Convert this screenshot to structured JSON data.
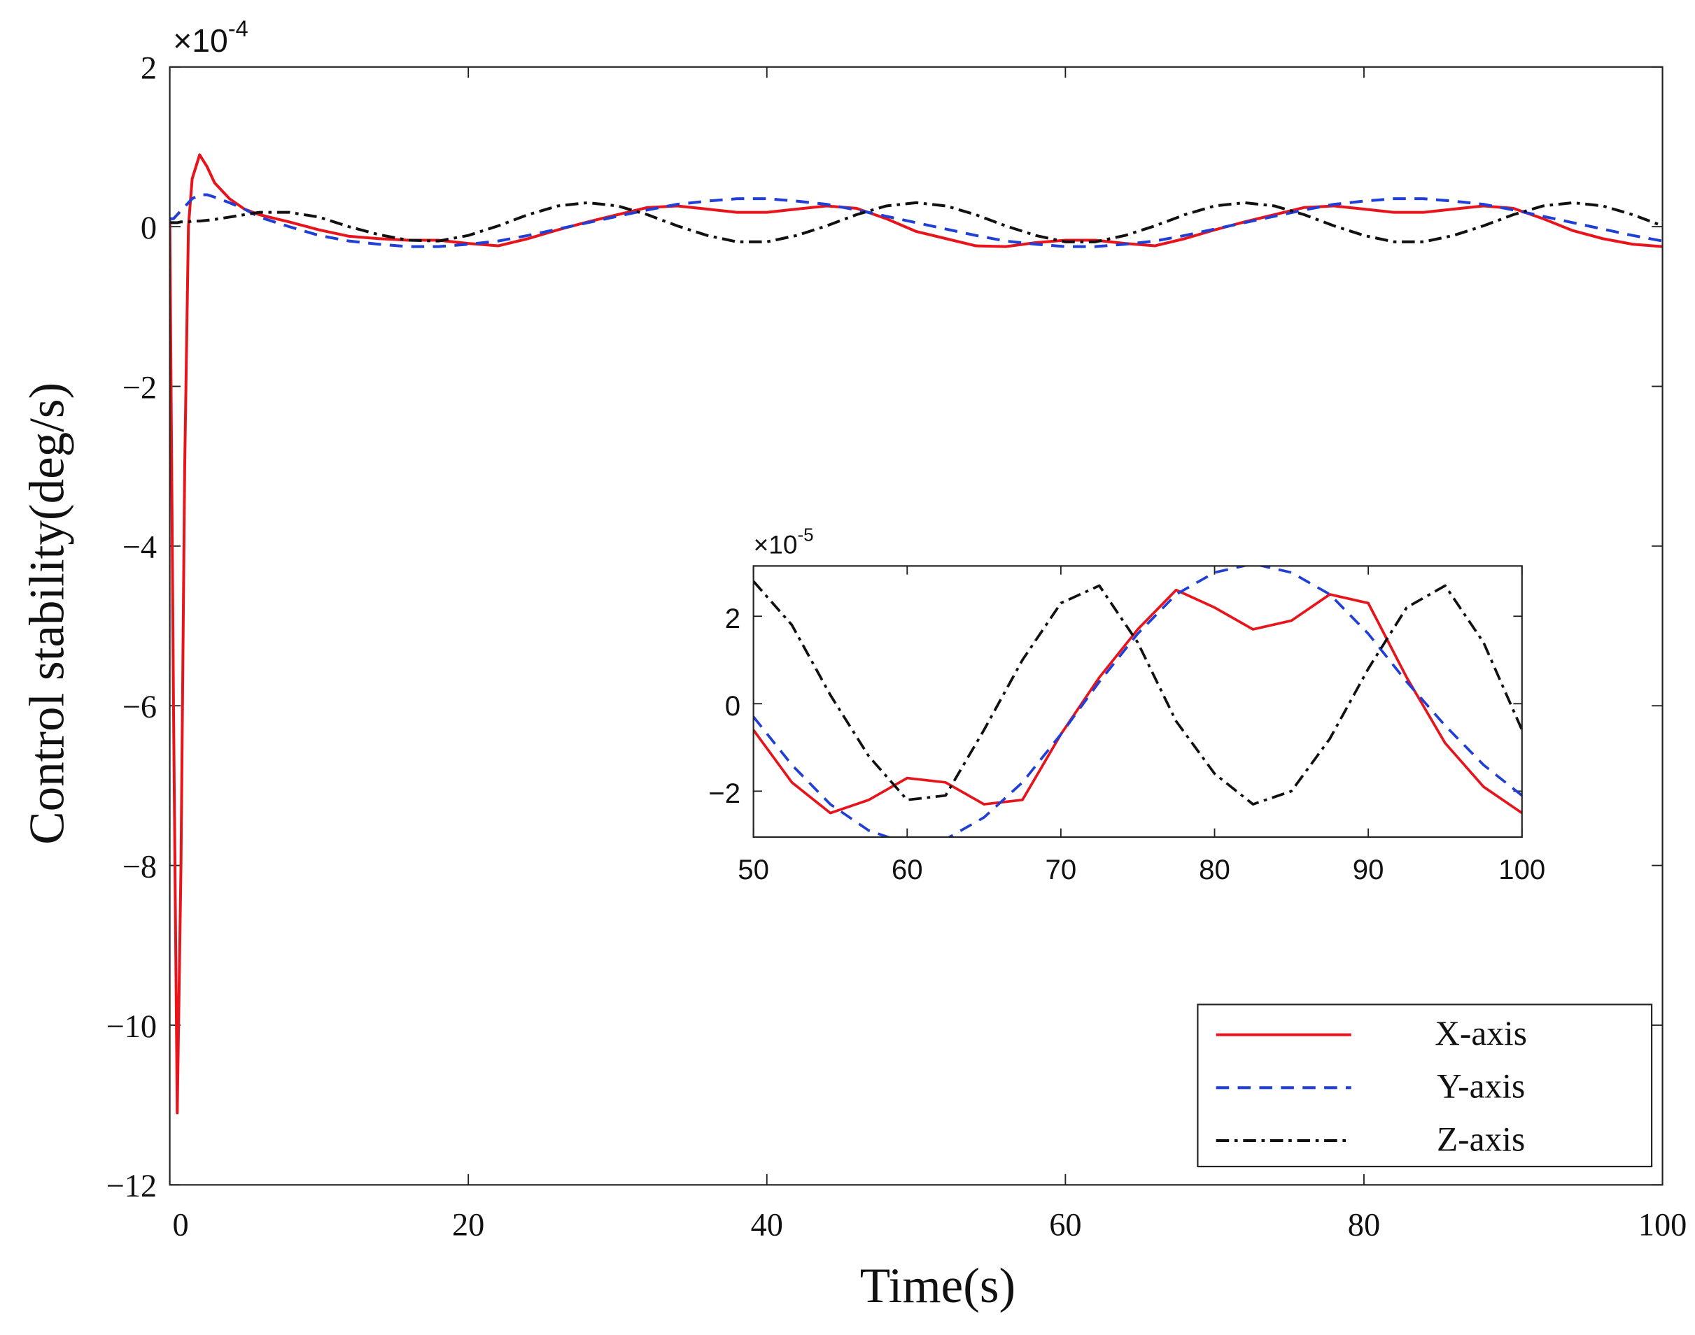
{
  "chart_data": [
    {
      "type": "line",
      "xlabel": "Time(s)",
      "ylabel": "Control stability(deg/s)",
      "multiplier": {
        "base": "×10",
        "exponent": "-4"
      },
      "x": [
        0,
        0.25,
        0.5,
        0.75,
        1,
        1.25,
        1.5,
        2,
        2.5,
        3,
        4,
        5,
        6,
        8,
        10,
        12,
        14,
        16,
        18,
        20,
        22,
        24,
        26,
        28,
        30,
        32,
        34,
        36,
        38,
        40,
        42,
        44,
        46,
        48,
        50,
        52,
        54,
        56,
        58,
        60,
        62,
        64,
        66,
        68,
        70,
        72,
        74,
        76,
        78,
        80,
        82,
        84,
        86,
        88,
        90,
        92,
        94,
        96,
        98,
        100
      ],
      "xlim": [
        0,
        100
      ],
      "xticks": [
        0,
        20,
        40,
        60,
        80,
        100
      ],
      "ylim": [
        -12,
        2
      ],
      "yticks": [
        -12,
        -10,
        -8,
        -6,
        -4,
        -2,
        0,
        2
      ],
      "grid": false,
      "legend": "lower right",
      "series": [
        {
          "name": "X-axis",
          "color": "#e8141c",
          "dash": "solid",
          "values": [
            0.1,
            -6,
            -11.1,
            -8,
            -3,
            0,
            0.6,
            0.9,
            0.75,
            0.55,
            0.35,
            0.22,
            0.15,
            0.06,
            -0.04,
            -0.12,
            -0.15,
            -0.17,
            -0.17,
            -0.21,
            -0.24,
            -0.15,
            -0.04,
            0.06,
            0.15,
            0.24,
            0.26,
            0.22,
            0.18,
            0.18,
            0.22,
            0.26,
            0.23,
            0.1,
            -0.06,
            -0.15,
            -0.24,
            -0.25,
            -0.2,
            -0.17,
            -0.17,
            -0.21,
            -0.24,
            -0.15,
            -0.04,
            0.06,
            0.15,
            0.24,
            0.26,
            0.22,
            0.18,
            0.18,
            0.22,
            0.26,
            0.23,
            0.1,
            -0.05,
            -0.15,
            -0.22,
            -0.25
          ]
        },
        {
          "name": "Y-axis",
          "color": "#1f3fd6",
          "dash": "dashed",
          "values": [
            0.1,
            0.1,
            0.15,
            0.2,
            0.25,
            0.3,
            0.35,
            0.4,
            0.4,
            0.37,
            0.3,
            0.22,
            0.12,
            0.0,
            -0.11,
            -0.18,
            -0.22,
            -0.25,
            -0.25,
            -0.22,
            -0.18,
            -0.11,
            -0.03,
            0.05,
            0.13,
            0.21,
            0.28,
            0.32,
            0.35,
            0.35,
            0.32,
            0.28,
            0.21,
            0.13,
            0.05,
            -0.03,
            -0.11,
            -0.18,
            -0.22,
            -0.25,
            -0.25,
            -0.22,
            -0.18,
            -0.11,
            -0.03,
            0.05,
            0.13,
            0.21,
            0.28,
            0.32,
            0.35,
            0.35,
            0.32,
            0.28,
            0.21,
            0.13,
            0.05,
            -0.03,
            -0.11,
            -0.18
          ]
        },
        {
          "name": "Z-axis",
          "color": "#111111",
          "dash": "dashdot",
          "values": [
            0.05,
            0.05,
            0.05,
            0.06,
            0.06,
            0.06,
            0.07,
            0.07,
            0.08,
            0.09,
            0.12,
            0.15,
            0.18,
            0.18,
            0.12,
            0.0,
            -0.1,
            -0.17,
            -0.18,
            -0.11,
            0.01,
            0.15,
            0.26,
            0.3,
            0.26,
            0.15,
            0.01,
            -0.11,
            -0.19,
            -0.19,
            -0.11,
            0.01,
            0.15,
            0.26,
            0.3,
            0.26,
            0.15,
            0.01,
            -0.11,
            -0.19,
            -0.19,
            -0.11,
            0.01,
            0.15,
            0.26,
            0.3,
            0.26,
            0.15,
            0.01,
            -0.11,
            -0.19,
            -0.19,
            -0.11,
            0.01,
            0.15,
            0.26,
            0.3,
            0.26,
            0.15,
            0.01
          ]
        }
      ]
    },
    {
      "type": "line",
      "multiplier": {
        "base": "×10",
        "exponent": "-5"
      },
      "x": [
        50,
        52.5,
        55,
        57.5,
        60,
        62.5,
        65,
        67.5,
        70,
        72.5,
        75,
        77.5,
        80,
        82.5,
        85,
        87.5,
        90,
        92.5,
        95,
        97.5,
        100
      ],
      "xlim": [
        50,
        100
      ],
      "xticks": [
        50,
        60,
        70,
        80,
        90,
        100
      ],
      "ylim": [
        -3.05,
        3.15
      ],
      "yticks": [
        -2,
        0,
        2
      ],
      "grid": false,
      "series": [
        {
          "color": "#e8141c",
          "dash": "solid",
          "values": [
            -0.6,
            -1.8,
            -2.5,
            -2.2,
            -1.7,
            -1.8,
            -2.3,
            -2.2,
            -0.7,
            0.6,
            1.7,
            2.6,
            2.2,
            1.7,
            1.9,
            2.5,
            2.3,
            0.6,
            -0.9,
            -1.9,
            -2.5
          ]
        },
        {
          "color": "#1f3fd6",
          "dash": "dashed",
          "values": [
            -0.3,
            -1.4,
            -2.3,
            -2.9,
            -3.2,
            -3.1,
            -2.6,
            -1.8,
            -0.7,
            0.5,
            1.6,
            2.5,
            3.0,
            3.2,
            3.0,
            2.5,
            1.6,
            0.5,
            -0.5,
            -1.4,
            -2.1
          ]
        },
        {
          "color": "#111111",
          "dash": "dashdot",
          "values": [
            2.8,
            1.8,
            0.2,
            -1.2,
            -2.2,
            -2.1,
            -0.6,
            1.0,
            2.3,
            2.7,
            1.4,
            -0.4,
            -1.6,
            -2.3,
            -2.0,
            -0.8,
            0.8,
            2.2,
            2.7,
            1.4,
            -0.6
          ]
        }
      ]
    }
  ]
}
